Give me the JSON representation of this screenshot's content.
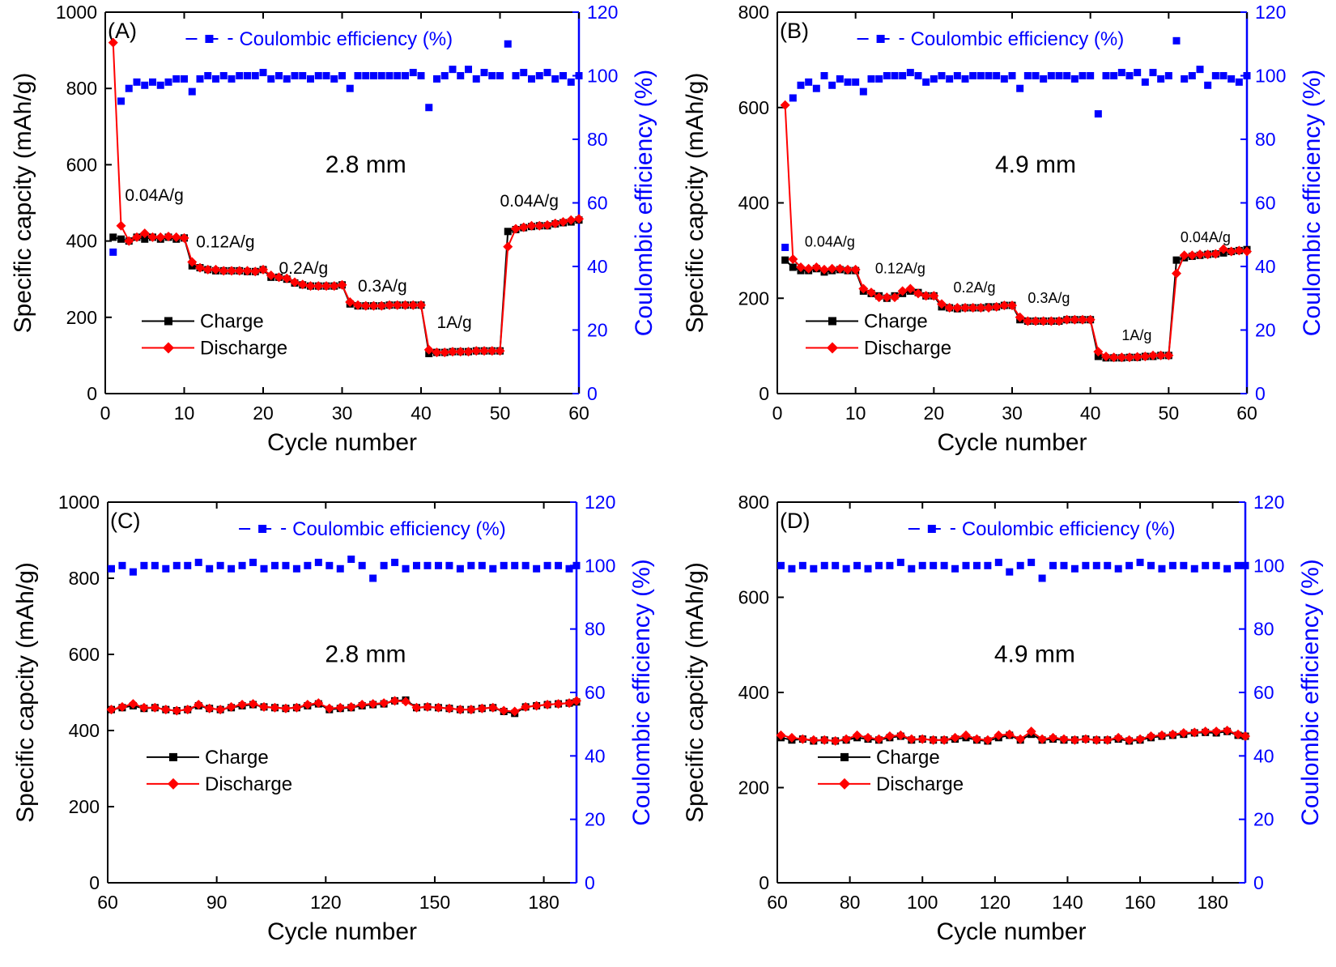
{
  "figure": {
    "panel_count": 4
  },
  "chart_data": [
    {
      "type": "line",
      "panel_label": "(A)",
      "thickness_label": "2.8 mm",
      "xlabel": "Cycle number",
      "ylabel": "Specific capcity (mAh/g)",
      "y2label": "Coulombic efficiency (%)",
      "xlim": [
        0,
        60
      ],
      "ylim": [
        0,
        1000
      ],
      "y2lim": [
        0,
        120
      ],
      "xticks": [
        0,
        10,
        20,
        30,
        40,
        50,
        60
      ],
      "yticks": [
        0,
        200,
        400,
        600,
        800,
        1000
      ],
      "y2ticks": [
        0,
        20,
        40,
        60,
        80,
        100,
        120
      ],
      "legend": {
        "charge": "Charge",
        "discharge": "Discharge",
        "ce": "Coulombic efficiency (%)"
      },
      "colors": {
        "charge": "#000000",
        "discharge": "#ff0000",
        "ce": "#0000ff"
      },
      "rate_labels": [
        {
          "text": "0.04A/g",
          "x": 2.5,
          "y": 505
        },
        {
          "text": "0.12A/g",
          "x": 11.5,
          "y": 383
        },
        {
          "text": "0.2A/g",
          "x": 22,
          "y": 314
        },
        {
          "text": "0.3A/g",
          "x": 32,
          "y": 268
        },
        {
          "text": "1A/g",
          "x": 42,
          "y": 172
        },
        {
          "text": "0.04A/g",
          "x": 50,
          "y": 490
        }
      ],
      "x": [
        1,
        2,
        3,
        4,
        5,
        6,
        7,
        8,
        9,
        10,
        11,
        12,
        13,
        14,
        15,
        16,
        17,
        18,
        19,
        20,
        21,
        22,
        23,
        24,
        25,
        26,
        27,
        28,
        29,
        30,
        31,
        32,
        33,
        34,
        35,
        36,
        37,
        38,
        39,
        40,
        41,
        42,
        43,
        44,
        45,
        46,
        47,
        48,
        49,
        50,
        51,
        52,
        53,
        54,
        55,
        56,
        57,
        58,
        59,
        60
      ],
      "series": [
        {
          "name": "Charge",
          "axis": "left",
          "values": [
            410,
            405,
            400,
            410,
            405,
            410,
            405,
            410,
            405,
            408,
            335,
            330,
            325,
            322,
            322,
            322,
            322,
            320,
            320,
            325,
            305,
            305,
            300,
            290,
            285,
            282,
            282,
            282,
            282,
            285,
            235,
            230,
            230,
            230,
            230,
            232,
            232,
            232,
            232,
            232,
            105,
            108,
            108,
            110,
            110,
            110,
            112,
            112,
            112,
            112,
            425,
            430,
            435,
            438,
            440,
            440,
            445,
            448,
            450,
            455
          ]
        },
        {
          "name": "Discharge",
          "axis": "left",
          "values": [
            920,
            440,
            400,
            410,
            420,
            410,
            410,
            412,
            410,
            408,
            345,
            330,
            325,
            325,
            322,
            322,
            322,
            322,
            320,
            325,
            310,
            305,
            302,
            292,
            286,
            282,
            282,
            282,
            282,
            285,
            240,
            232,
            230,
            230,
            230,
            232,
            232,
            232,
            232,
            232,
            115,
            108,
            108,
            110,
            110,
            110,
            112,
            112,
            112,
            112,
            385,
            432,
            436,
            440,
            440,
            442,
            446,
            450,
            455,
            458
          ]
        },
        {
          "name": "Coulombic efficiency (%)",
          "axis": "right",
          "values": [
            44.5,
            92,
            96,
            98,
            97,
            98,
            97,
            98,
            99,
            99,
            95,
            99,
            100,
            99,
            100,
            99,
            100,
            100,
            100,
            101,
            99,
            100,
            99,
            100,
            100,
            99,
            100,
            100,
            99,
            100,
            96,
            100,
            100,
            100,
            100,
            100,
            100,
            100,
            101,
            100,
            90,
            99,
            100,
            102,
            100,
            102,
            99,
            101,
            100,
            100,
            110,
            100,
            101,
            99,
            100,
            101,
            99,
            100,
            98,
            100
          ]
        }
      ]
    },
    {
      "type": "line",
      "panel_label": "(B)",
      "thickness_label": "4.9 mm",
      "xlabel": "Cycle number",
      "ylabel": "Specific capcity (mAh/g)",
      "y2label": "Coulombic efficiency (%)",
      "xlim": [
        0,
        60
      ],
      "ylim": [
        0,
        800
      ],
      "y2lim": [
        0,
        120
      ],
      "xticks": [
        0,
        10,
        20,
        30,
        40,
        50,
        60
      ],
      "yticks": [
        0,
        200,
        400,
        600,
        800
      ],
      "y2ticks": [
        0,
        20,
        40,
        60,
        80,
        100,
        120
      ],
      "legend": {
        "charge": "Charge",
        "discharge": "Discharge",
        "ce": "Coulombic efficiency (%)"
      },
      "colors": {
        "charge": "#000000",
        "discharge": "#ff0000",
        "ce": "#0000ff"
      },
      "rate_labels": [
        {
          "text": "0.04A/g",
          "x": 3.5,
          "y": 308
        },
        {
          "text": "0.12A/g",
          "x": 12.5,
          "y": 252
        },
        {
          "text": "0.2A/g",
          "x": 22.5,
          "y": 212
        },
        {
          "text": "0.3A/g",
          "x": 32,
          "y": 190
        },
        {
          "text": "1A/g",
          "x": 44,
          "y": 112
        },
        {
          "text": "0.04A/g",
          "x": 51.5,
          "y": 318
        }
      ],
      "x": [
        1,
        2,
        3,
        4,
        5,
        6,
        7,
        8,
        9,
        10,
        11,
        12,
        13,
        14,
        15,
        16,
        17,
        18,
        19,
        20,
        21,
        22,
        23,
        24,
        25,
        26,
        27,
        28,
        29,
        30,
        31,
        32,
        33,
        34,
        35,
        36,
        37,
        38,
        39,
        40,
        41,
        42,
        43,
        44,
        45,
        46,
        47,
        48,
        49,
        50,
        51,
        52,
        53,
        54,
        55,
        56,
        57,
        58,
        59,
        60
      ],
      "series": [
        {
          "name": "Charge",
          "axis": "left",
          "values": [
            280,
            265,
            258,
            258,
            262,
            255,
            258,
            260,
            258,
            258,
            215,
            210,
            205,
            200,
            205,
            210,
            215,
            212,
            205,
            205,
            182,
            180,
            178,
            180,
            180,
            180,
            182,
            182,
            185,
            185,
            155,
            152,
            152,
            152,
            152,
            152,
            155,
            155,
            155,
            155,
            78,
            75,
            75,
            75,
            76,
            76,
            78,
            78,
            80,
            80,
            280,
            285,
            288,
            290,
            292,
            293,
            295,
            298,
            300,
            302
          ]
        },
        {
          "name": "Discharge",
          "axis": "left",
          "values": [
            605,
            282,
            265,
            262,
            265,
            260,
            262,
            262,
            260,
            260,
            220,
            212,
            202,
            202,
            202,
            215,
            220,
            210,
            205,
            205,
            188,
            180,
            180,
            180,
            180,
            180,
            180,
            182,
            185,
            185,
            160,
            152,
            152,
            152,
            152,
            152,
            155,
            155,
            155,
            155,
            88,
            78,
            76,
            76,
            76,
            77,
            78,
            80,
            80,
            80,
            252,
            290,
            290,
            292,
            292,
            293,
            303,
            298,
            300,
            298
          ]
        },
        {
          "name": "Coulombic efficiency (%)",
          "axis": "right",
          "values": [
            46,
            93,
            97,
            98,
            96,
            100,
            97,
            99,
            98,
            98,
            95,
            99,
            99,
            100,
            100,
            100,
            101,
            100,
            98,
            99,
            100,
            99,
            100,
            99,
            100,
            100,
            100,
            100,
            99,
            100,
            96,
            100,
            100,
            99,
            100,
            100,
            100,
            99,
            100,
            100,
            88,
            100,
            100,
            101,
            100,
            101,
            98,
            101,
            99,
            100,
            111,
            99,
            100,
            102,
            97,
            100,
            100,
            99,
            98,
            100
          ]
        }
      ]
    },
    {
      "type": "line",
      "panel_label": "(C)",
      "thickness_label": "2.8 mm",
      "xlabel": "Cycle number",
      "ylabel": "Specific capcity (mAh/g)",
      "y2label": "Coulombic efficiency (%)",
      "xlim": [
        60,
        189
      ],
      "ylim": [
        0,
        1000
      ],
      "y2lim": [
        0,
        120
      ],
      "xticks": [
        60,
        90,
        120,
        150,
        180
      ],
      "yticks": [
        0,
        200,
        400,
        600,
        800,
        1000
      ],
      "y2ticks": [
        0,
        20,
        40,
        60,
        80,
        100,
        120
      ],
      "legend": {
        "charge": "Charge",
        "discharge": "Discharge",
        "ce": "Coulombic efficiency (%)"
      },
      "colors": {
        "charge": "#000000",
        "discharge": "#ff0000",
        "ce": "#0000ff"
      },
      "x": [
        61,
        64,
        67,
        70,
        73,
        76,
        79,
        82,
        85,
        88,
        91,
        94,
        97,
        100,
        103,
        106,
        109,
        112,
        115,
        118,
        121,
        124,
        127,
        130,
        133,
        136,
        139,
        142,
        145,
        148,
        151,
        154,
        157,
        160,
        163,
        166,
        169,
        172,
        175,
        178,
        181,
        184,
        187,
        189
      ],
      "series": [
        {
          "name": "Charge",
          "axis": "left",
          "values": [
            455,
            460,
            465,
            458,
            460,
            455,
            452,
            455,
            465,
            458,
            455,
            460,
            465,
            468,
            462,
            460,
            458,
            460,
            465,
            470,
            455,
            458,
            460,
            465,
            468,
            470,
            478,
            480,
            460,
            462,
            460,
            458,
            455,
            455,
            458,
            460,
            450,
            445,
            462,
            465,
            468,
            470,
            472,
            475
          ]
        },
        {
          "name": "Discharge",
          "axis": "left",
          "values": [
            455,
            462,
            470,
            460,
            460,
            455,
            452,
            455,
            468,
            458,
            455,
            462,
            468,
            470,
            462,
            460,
            458,
            460,
            468,
            472,
            458,
            460,
            462,
            468,
            470,
            472,
            478,
            476,
            460,
            462,
            460,
            458,
            455,
            455,
            458,
            460,
            452,
            450,
            462,
            465,
            468,
            470,
            472,
            478
          ]
        },
        {
          "name": "Coulombic efficiency (%)",
          "axis": "right",
          "values": [
            99,
            100,
            98,
            100,
            100,
            99,
            100,
            100,
            101,
            99,
            100,
            99,
            100,
            101,
            99,
            100,
            100,
            99,
            100,
            101,
            100,
            99,
            102,
            100,
            96,
            100,
            101,
            99,
            100,
            100,
            100,
            100,
            99,
            100,
            100,
            99,
            100,
            100,
            100,
            99,
            100,
            100,
            99,
            100
          ]
        }
      ]
    },
    {
      "type": "line",
      "panel_label": "(D)",
      "thickness_label": "4.9 mm",
      "xlabel": "Cycle number",
      "ylabel": "Specific capcity (mAh/g)",
      "y2label": "Coulombic efficiency (%)",
      "xlim": [
        60,
        189
      ],
      "ylim": [
        0,
        800
      ],
      "y2lim": [
        0,
        120
      ],
      "xticks": [
        60,
        80,
        100,
        120,
        140,
        160,
        180
      ],
      "yticks": [
        0,
        200,
        400,
        600,
        800
      ],
      "y2ticks": [
        0,
        20,
        40,
        60,
        80,
        100,
        120
      ],
      "legend": {
        "charge": "Charge",
        "discharge": "Discharge",
        "ce": "Coulombic efficiency (%)"
      },
      "colors": {
        "charge": "#000000",
        "discharge": "#ff0000",
        "ce": "#0000ff"
      },
      "x": [
        61,
        64,
        67,
        70,
        73,
        76,
        79,
        82,
        85,
        88,
        91,
        94,
        97,
        100,
        103,
        106,
        109,
        112,
        115,
        118,
        121,
        124,
        127,
        130,
        133,
        136,
        139,
        142,
        145,
        148,
        151,
        154,
        157,
        160,
        163,
        166,
        169,
        172,
        175,
        178,
        181,
        184,
        187,
        189
      ],
      "series": [
        {
          "name": "Charge",
          "axis": "left",
          "values": [
            305,
            300,
            302,
            298,
            300,
            298,
            300,
            305,
            302,
            300,
            305,
            308,
            300,
            302,
            300,
            300,
            302,
            305,
            300,
            298,
            305,
            310,
            300,
            312,
            300,
            302,
            300,
            300,
            302,
            300,
            300,
            302,
            298,
            300,
            305,
            308,
            310,
            312,
            315,
            316,
            315,
            318,
            310,
            308
          ]
        },
        {
          "name": "Discharge",
          "axis": "left",
          "values": [
            310,
            305,
            302,
            300,
            300,
            298,
            302,
            310,
            305,
            302,
            308,
            310,
            302,
            302,
            300,
            300,
            305,
            310,
            302,
            300,
            310,
            312,
            302,
            318,
            302,
            305,
            302,
            300,
            302,
            300,
            300,
            305,
            300,
            302,
            308,
            310,
            312,
            315,
            316,
            318,
            318,
            320,
            312,
            308
          ]
        },
        {
          "name": "Coulombic efficiency (%)",
          "axis": "right",
          "values": [
            100,
            99,
            100,
            99,
            100,
            100,
            99,
            100,
            99,
            100,
            100,
            101,
            99,
            100,
            100,
            100,
            99,
            100,
            100,
            100,
            101,
            98,
            100,
            101,
            96,
            100,
            100,
            99,
            100,
            100,
            100,
            99,
            100,
            101,
            100,
            99,
            100,
            100,
            99,
            100,
            100,
            99,
            100,
            100
          ]
        }
      ]
    }
  ]
}
